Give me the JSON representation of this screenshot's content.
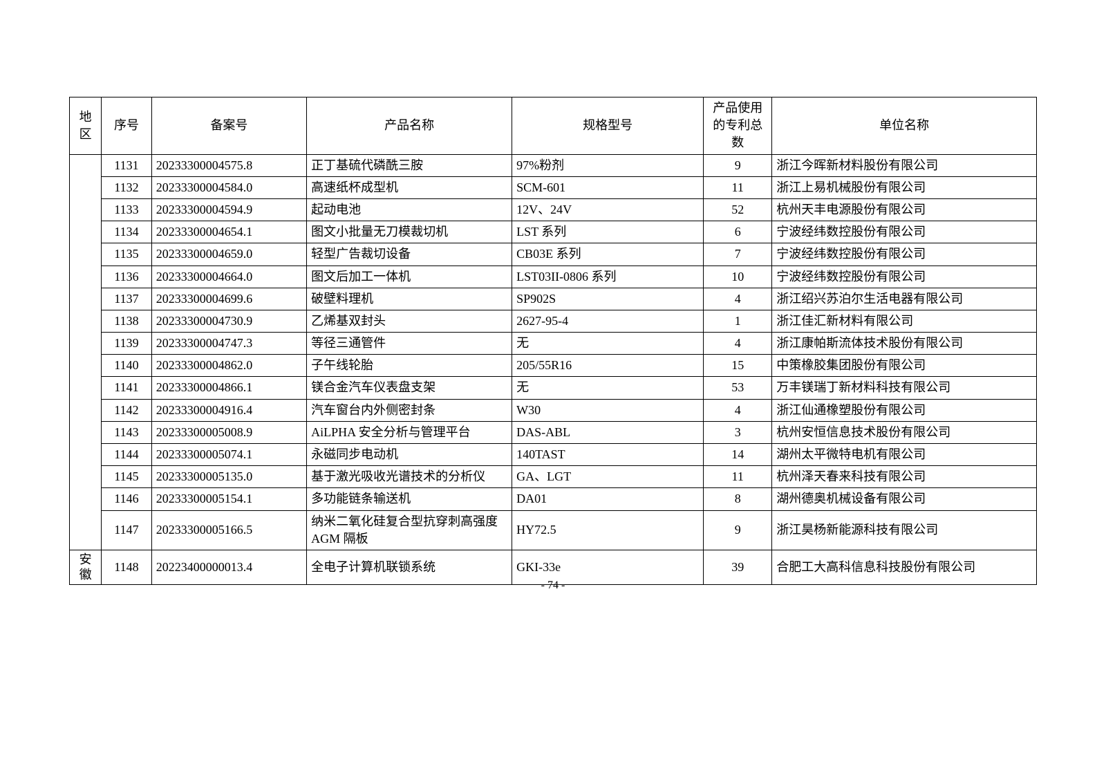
{
  "table": {
    "headers": {
      "region": "地区",
      "seq": "序号",
      "record": "备案号",
      "product": "产品名称",
      "spec": "规格型号",
      "patent": "产品使用的专利总数",
      "company": "单位名称"
    },
    "rows": [
      {
        "region": "",
        "seq": "1131",
        "record": "20233300004575.8",
        "product": "正丁基硫代磷酰三胺",
        "spec": "97%粉剂",
        "patent": "9",
        "company": "浙江今晖新材料股份有限公司"
      },
      {
        "region": "",
        "seq": "1132",
        "record": "20233300004584.0",
        "product": "高速纸杯成型机",
        "spec": "SCM-601",
        "patent": "11",
        "company": "浙江上易机械股份有限公司"
      },
      {
        "region": "",
        "seq": "1133",
        "record": "20233300004594.9",
        "product": "起动电池",
        "spec": "12V、24V",
        "patent": "52",
        "company": "杭州天丰电源股份有限公司"
      },
      {
        "region": "",
        "seq": "1134",
        "record": "20233300004654.1",
        "product": "图文小批量无刀模裁切机",
        "spec": "LST 系列",
        "patent": "6",
        "company": "宁波经纬数控股份有限公司"
      },
      {
        "region": "",
        "seq": "1135",
        "record": "20233300004659.0",
        "product": "轻型广告裁切设备",
        "spec": "CB03E 系列",
        "patent": "7",
        "company": "宁波经纬数控股份有限公司"
      },
      {
        "region": "",
        "seq": "1136",
        "record": "20233300004664.0",
        "product": "图文后加工一体机",
        "spec": "LST03II-0806 系列",
        "patent": "10",
        "company": "宁波经纬数控股份有限公司"
      },
      {
        "region": "",
        "seq": "1137",
        "record": "20233300004699.6",
        "product": "破壁料理机",
        "spec": "SP902S",
        "patent": "4",
        "company": "浙江绍兴苏泊尔生活电器有限公司"
      },
      {
        "region": "",
        "seq": "1138",
        "record": "20233300004730.9",
        "product": "乙烯基双封头",
        "spec": "2627-95-4",
        "patent": "1",
        "company": "浙江佳汇新材料有限公司"
      },
      {
        "region": "",
        "seq": "1139",
        "record": "20233300004747.3",
        "product": "等径三通管件",
        "spec": "无",
        "patent": "4",
        "company": "浙江康帕斯流体技术股份有限公司"
      },
      {
        "region": "",
        "seq": "1140",
        "record": "20233300004862.0",
        "product": "子午线轮胎",
        "spec": "205/55R16",
        "patent": "15",
        "company": "中策橡胶集团股份有限公司"
      },
      {
        "region": "",
        "seq": "1141",
        "record": "20233300004866.1",
        "product": "镁合金汽车仪表盘支架",
        "spec": "无",
        "patent": "53",
        "company": "万丰镁瑞丁新材料科技有限公司"
      },
      {
        "region": "",
        "seq": "1142",
        "record": "20233300004916.4",
        "product": "汽车窗台内外侧密封条",
        "spec": "W30",
        "patent": "4",
        "company": "浙江仙通橡塑股份有限公司"
      },
      {
        "region": "",
        "seq": "1143",
        "record": "20233300005008.9",
        "product": "AiLPHA 安全分析与管理平台",
        "spec": "DAS-ABL",
        "patent": "3",
        "company": "杭州安恒信息技术股份有限公司"
      },
      {
        "region": "",
        "seq": "1144",
        "record": "20233300005074.1",
        "product": "永磁同步电动机",
        "spec": "140TAST",
        "patent": "14",
        "company": "湖州太平微特电机有限公司"
      },
      {
        "region": "",
        "seq": "1145",
        "record": "20233300005135.0",
        "product": "基于激光吸收光谱技术的分析仪",
        "spec": "GA、LGT",
        "patent": "11",
        "company": "杭州泽天春来科技有限公司"
      },
      {
        "region": "",
        "seq": "1146",
        "record": "20233300005154.1",
        "product": "多功能链条输送机",
        "spec": "DA01",
        "patent": "8",
        "company": "湖州德奥机械设备有限公司"
      },
      {
        "region": "",
        "seq": "1147",
        "record": "20233300005166.5",
        "product": "纳米二氧化硅复合型抗穿刺高强度 AGM 隔板",
        "spec": "HY72.5",
        "patent": "9",
        "company": "浙江昊杨新能源科技有限公司"
      },
      {
        "region": "安徽",
        "seq": "1148",
        "record": "20223400000013.4",
        "product": "全电子计算机联锁系统",
        "spec": "GKI-33e",
        "patent": "39",
        "company": "合肥工大高科信息科技股份有限公司"
      }
    ]
  },
  "pageNumber": "- 74 -"
}
